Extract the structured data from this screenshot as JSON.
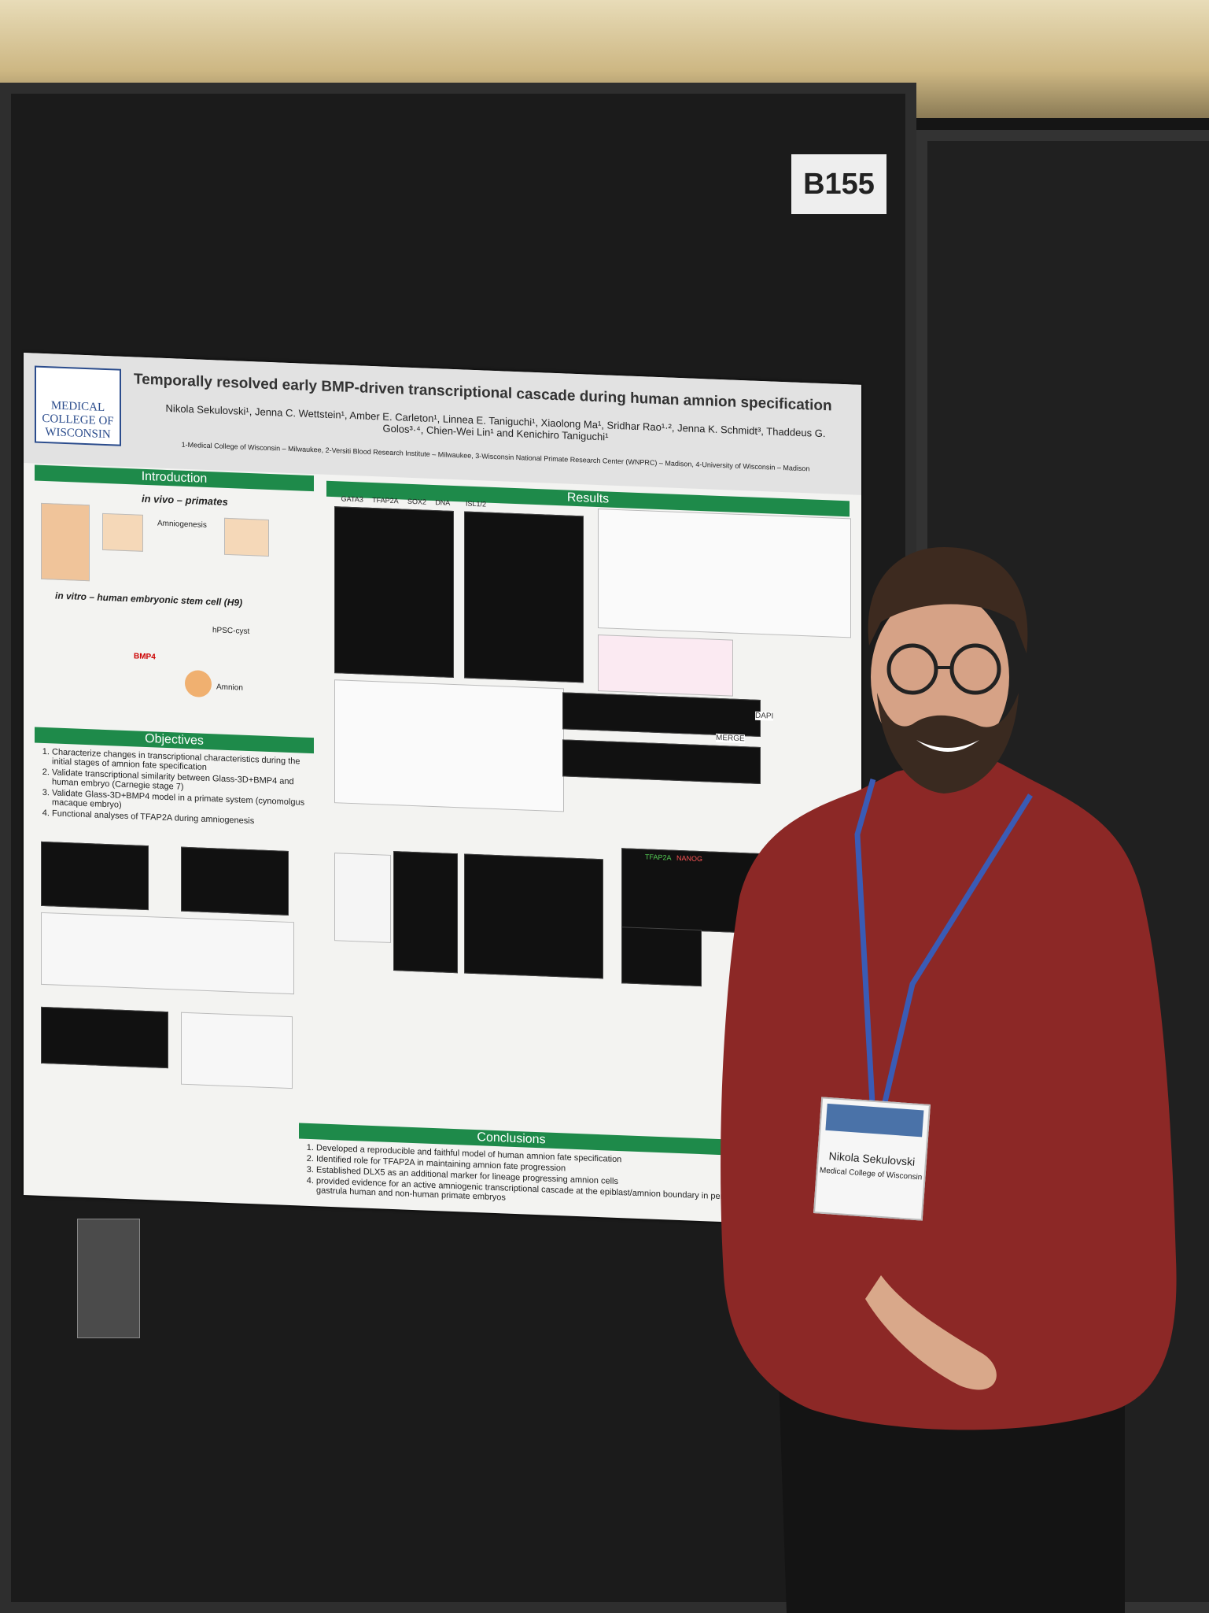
{
  "booth_number": "B155",
  "poster": {
    "institution": "MEDICAL COLLEGE OF WISCONSIN",
    "title": "Temporally resolved early BMP-driven transcriptional cascade during human amnion specification",
    "authors": "Nikola Sekulovski¹, Jenna C. Wettstein¹, Amber E. Carleton¹, Linnea E. Taniguchi¹, Xiaolong Ma¹, Sridhar Rao¹·², Jenna K. Schmidt³, Thaddeus G. Golos³·⁴, Chien-Wei Lin¹ and Kenichiro Taniguchi¹",
    "affiliations": "1-Medical College of Wisconsin – Milwaukee, 2-Versiti Blood Research Institute – Milwaukee, 3-Wisconsin National Primate Research Center (WNPRC) – Madison, 4-University of Wisconsin – Madison",
    "sections": {
      "introduction": "Introduction",
      "results": "Results",
      "objectives": "Objectives",
      "conclusions": "Conclusions"
    },
    "intro_labels": {
      "in_vivo": "in vivo – primates",
      "in_vitro": "in vitro – human embryonic stem cell (H9)",
      "amniogenesis": "Amniogenesis",
      "cyst": "hPSC-cyst",
      "amnion": "Amnion",
      "bmp4": "BMP4"
    },
    "objectives": [
      "Characterize changes in transcriptional characteristics during the initial stages of amnion fate specification",
      "Validate transcriptional similarity between Glass-3D+BMP4 and human embryo (Carnegie stage 7)",
      "Validate Glass-3D+BMP4 model in a primate system (cynomolgus macaque embryo)",
      "Functional analyses of TFAP2A during amniogenesis"
    ],
    "conclusions": [
      "Developed a reproducible and faithful model of human amnion fate specification",
      "Identified role for TFAP2A in maintaining amnion fate progression",
      "Established DLX5 as an additional marker for lineage progressing amnion cells",
      "provided evidence for an active amniogenic transcriptional cascade at the epiblast/amnion boundary in peri-gastrula human and non-human primate embryos"
    ],
    "panel_markers": [
      "GATA3",
      "TFAP2A",
      "SOX2",
      "DNA",
      "ISL1/2",
      "NANOG",
      "DAPI",
      "MERGE"
    ]
  },
  "badge": {
    "name": "Nikola Sekulovski",
    "affiliation": "Medical College of Wisconsin"
  }
}
